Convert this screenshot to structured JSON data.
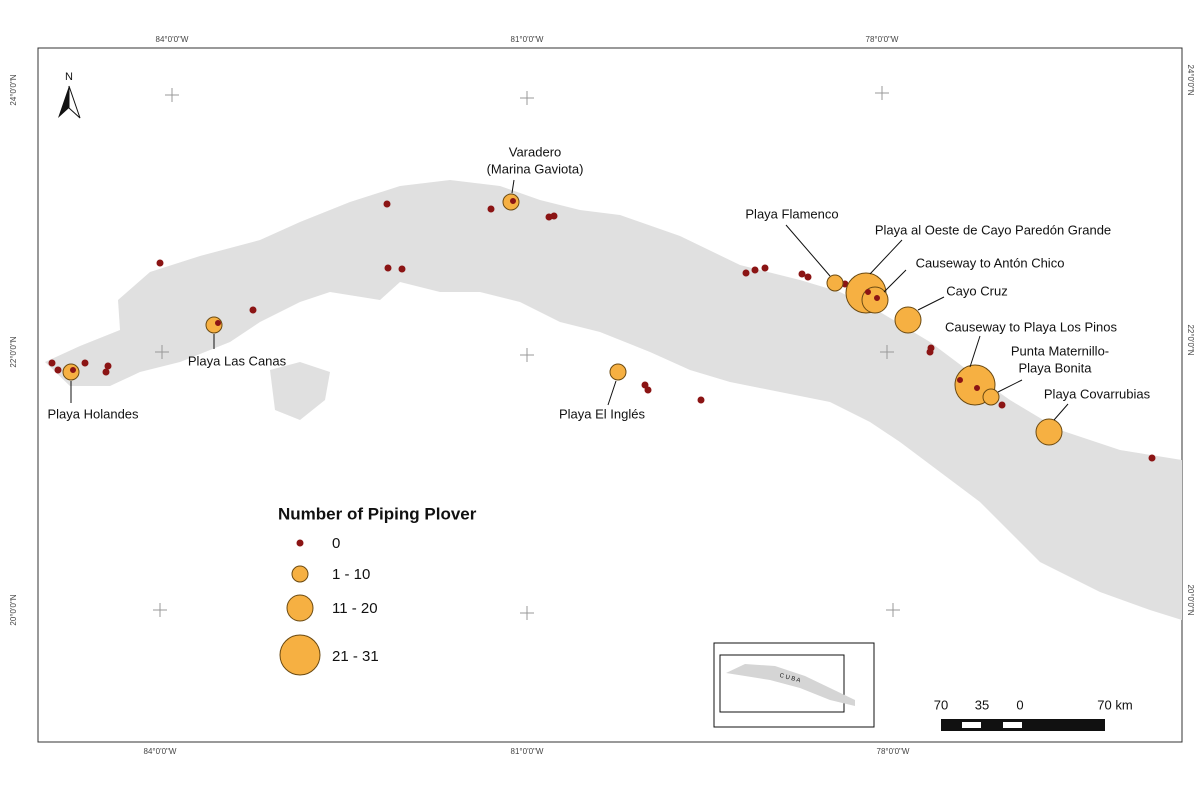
{
  "graticule": {
    "lon_top": [
      "84°0'0\"W",
      "81°0'0\"W",
      "78°0'0\"W"
    ],
    "lon_bottom": [
      "84°0'0\"W",
      "81°0'0\"W",
      "78°0'0\"W"
    ],
    "lat_left": [
      "24°0'0\"N",
      "22°0'0\"N",
      "20°0'0\"N"
    ],
    "lat_right": [
      "24°0'0\"N",
      "22°0'0\"N",
      "20°0'0\"N"
    ]
  },
  "north_arrow": "N",
  "sites": [
    {
      "label": [
        "Varadero",
        "(Marina Gaviota)"
      ]
    },
    {
      "label": [
        "Playa Flamenco"
      ]
    },
    {
      "label": [
        "Playa al Oeste de Cayo Paredón Grande"
      ]
    },
    {
      "label": [
        "Causeway to Antón Chico"
      ]
    },
    {
      "label": [
        "Cayo Cruz"
      ]
    },
    {
      "label": [
        "Causeway to Playa Los Pinos"
      ]
    },
    {
      "label": [
        "Punta Maternillo-",
        "Playa Bonita"
      ]
    },
    {
      "label": [
        "Playa Covarrubias"
      ]
    },
    {
      "label": [
        "Playa Las Canas"
      ]
    },
    {
      "label": [
        "Playa Holandes"
      ]
    },
    {
      "label": [
        "Playa El Inglés"
      ]
    }
  ],
  "legend": {
    "title": "Number of Piping Plover",
    "classes": [
      "0",
      "1 - 10",
      "11 - 20",
      "21 - 31"
    ]
  },
  "scale_bar": {
    "ticks": [
      70,
      35,
      0
    ],
    "end_label": "70 km"
  },
  "inset": {
    "label": "C U B A"
  }
}
